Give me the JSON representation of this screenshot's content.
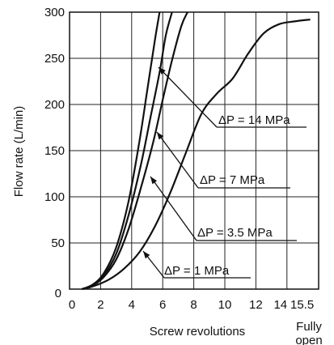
{
  "chart_data": {
    "type": "line",
    "xlabel": "Screw revolutions",
    "ylabel": "Flow rate (L/min)",
    "xlim": [
      0,
      15.5
    ],
    "ylim": [
      0,
      300
    ],
    "x_tick_labels": [
      "0",
      "2",
      "4",
      "6",
      "8",
      "10",
      "12",
      "14",
      "15.5"
    ],
    "x_ticks": [
      0,
      2,
      4,
      6,
      8,
      10,
      12,
      14,
      15.5
    ],
    "y_tick_labels": [
      "0",
      "50",
      "100",
      "150",
      "200",
      "250",
      "300"
    ],
    "y_ticks": [
      0,
      50,
      100,
      150,
      200,
      250,
      300
    ],
    "x_end_label": [
      "Fully",
      "open"
    ],
    "grid": true,
    "series": [
      {
        "name": "ΔP = 14 MPa",
        "x": [
          0.8,
          1.5,
          2.2,
          3.0,
          3.8,
          4.5,
          5.0,
          5.5,
          5.8
        ],
        "y": [
          0,
          5,
          17,
          45,
          95,
          160,
          215,
          270,
          300
        ]
      },
      {
        "name": "ΔP = 7 MPa",
        "x": [
          0.8,
          1.5,
          2.2,
          3.0,
          3.8,
          4.6,
          5.2,
          5.8,
          6.2,
          6.6
        ],
        "y": [
          0,
          4,
          15,
          38,
          80,
          135,
          185,
          235,
          275,
          300
        ]
      },
      {
        "name": "ΔP = 3.5 MPa",
        "x": [
          0.8,
          1.5,
          2.2,
          3.0,
          3.8,
          4.6,
          5.4,
          6.0,
          6.6,
          7.2,
          7.6
        ],
        "y": [
          0,
          4,
          13,
          32,
          65,
          110,
          160,
          205,
          248,
          285,
          300
        ]
      },
      {
        "name": "ΔP = 1 MPa",
        "x": [
          0.8,
          1.5,
          2.5,
          3.5,
          4.5,
          5.5,
          6.5,
          7.5,
          8.5,
          9.5,
          10.5,
          11.5,
          12.5,
          13.5,
          14.5,
          15.5
        ],
        "y": [
          0,
          3,
          10,
          22,
          40,
          68,
          105,
          148,
          190,
          212,
          228,
          255,
          277,
          287,
          290,
          292
        ]
      }
    ],
    "annotations": [
      {
        "text": "ΔP = 14 MPa",
        "series": 0
      },
      {
        "text": "ΔP = 7 MPa",
        "series": 1
      },
      {
        "text": "ΔP = 3.5 MPa",
        "series": 2
      },
      {
        "text": "ΔP = 1 MPa",
        "series": 3
      }
    ]
  }
}
